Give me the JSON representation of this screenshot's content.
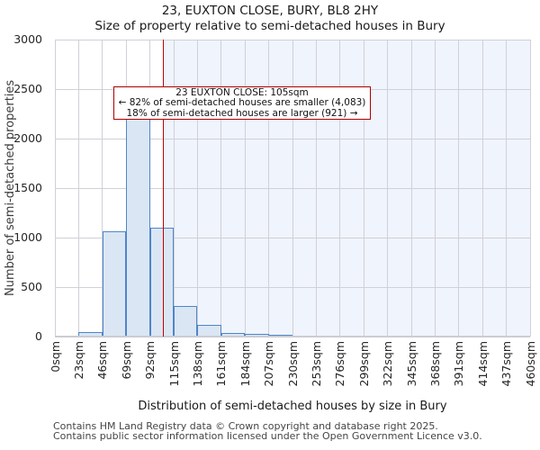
{
  "title": "23, EUXTON CLOSE, BURY, BL8 2HY",
  "subtitle": "Size of property relative to semi-detached houses in Bury",
  "annotation": {
    "line1": "23 EUXTON CLOSE: 105sqm",
    "line2": "← 82% of semi-detached houses are smaller (4,083)",
    "line3": "18% of semi-detached houses are larger (921) →"
  },
  "chart_data": {
    "type": "bar",
    "title": "23, EUXTON CLOSE, BURY, BL8 2HY",
    "subtitle": "Size of property relative to semi-detached houses in Bury",
    "xlabel": "Distribution of semi-detached houses by size in Bury",
    "ylabel": "Number of semi-detached properties",
    "xlim": [
      0,
      460
    ],
    "ylim": [
      0,
      3000
    ],
    "grid": true,
    "bin_width": 23,
    "bin_starts": [
      0,
      23,
      46,
      69,
      92,
      115,
      138,
      161,
      184,
      207,
      230,
      253,
      276,
      299,
      322,
      345,
      368,
      391,
      414,
      437
    ],
    "values": [
      0,
      50,
      1060,
      2250,
      1100,
      310,
      120,
      40,
      25,
      15,
      10,
      10,
      0,
      0,
      0,
      0,
      0,
      0,
      0,
      0
    ],
    "x_tick_values": [
      0,
      23,
      46,
      69,
      92,
      115,
      138,
      161,
      184,
      207,
      230,
      253,
      276,
      299,
      322,
      345,
      368,
      391,
      414,
      437,
      460
    ],
    "x_tick_labels": [
      "0sqm",
      "23sqm",
      "46sqm",
      "69sqm",
      "92sqm",
      "115sqm",
      "138sqm",
      "161sqm",
      "184sqm",
      "207sqm",
      "230sqm",
      "253sqm",
      "276sqm",
      "299sqm",
      "322sqm",
      "345sqm",
      "368sqm",
      "391sqm",
      "414sqm",
      "437sqm",
      "460sqm"
    ],
    "y_ticks": [
      0,
      500,
      1000,
      1500,
      2000,
      2500,
      3000
    ],
    "marker_value": 105,
    "marker_label": "23 EUXTON CLOSE: 105sqm",
    "smaller_pct": "82%",
    "smaller_count": "4,083",
    "larger_pct": "18%",
    "larger_count": "921"
  },
  "footer": {
    "line1": "Contains HM Land Registry data © Crown copyright and database right 2025.",
    "line2": "Contains public sector information licensed under the Open Government Licence v3.0."
  },
  "colors": {
    "bar_fill": "#dbe6f4",
    "bar_edge": "#4e86c8",
    "marker_red": "#c00000",
    "annotation_border": "#aa0000",
    "gridline": "#d0d0d8",
    "shade_right_of_marker": "#f0f4fc",
    "axis_line": "#ccccd4"
  }
}
